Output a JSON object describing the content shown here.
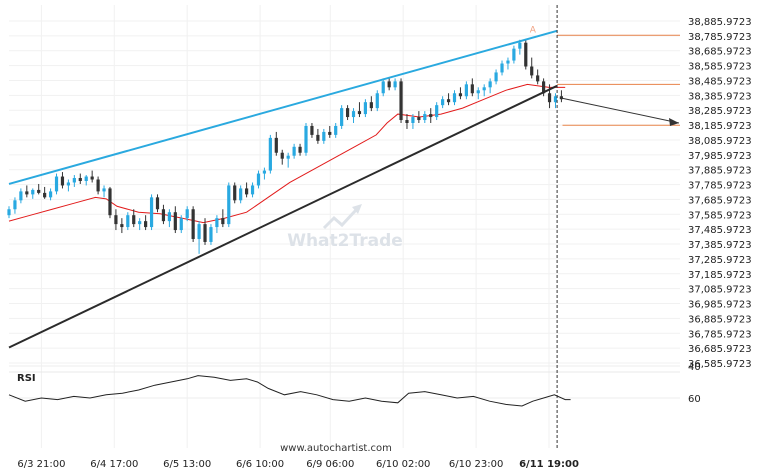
{
  "footer": {
    "source": "www.autochartist.com"
  },
  "watermark": {
    "text": "What2Trade"
  },
  "chart_data": {
    "type": "candlestick",
    "y_ticks": [
      "38,885.9723",
      "38,785.9723",
      "38,685.9723",
      "38,585.9723",
      "38,485.9723",
      "38,385.9723",
      "38,285.9723",
      "38,185.9723",
      "38,085.9723",
      "37,985.9723",
      "37,885.9723",
      "37,785.9723",
      "37,685.9723",
      "37,585.9723",
      "37,485.9723",
      "37,385.9723",
      "37,285.9723",
      "37,185.9723",
      "37,085.9723",
      "36,985.9723",
      "36,885.9723",
      "36,785.9723",
      "36,685.9723",
      "36,585.9723"
    ],
    "ylim": [
      36585.9723,
      38885.9723
    ],
    "x_ticks": [
      "6/3 21:00",
      "6/4 17:00",
      "6/5 13:00",
      "6/6 10:00",
      "6/9 06:00",
      "6/10 02:00",
      "6/10 23:00",
      "6/11 19:00"
    ],
    "x_range": [
      0,
      100
    ],
    "x_tick_positions": [
      6,
      19.5,
      33,
      46.5,
      59.5,
      73,
      86.5,
      100
    ],
    "pattern_label": "A",
    "colors": {
      "up_candle": "#29a9e1",
      "down_candle": "#333333",
      "moving_average": "#e21b1b",
      "upper_trendline": "#2aa9df",
      "lower_trendline": "#2b2b2b",
      "level_lines": "#e8834a",
      "forecast_arrow": "#333333"
    },
    "upper_trendline": [
      [
        0,
        37790
      ],
      [
        101.5,
        38820
      ]
    ],
    "lower_trendline": [
      [
        0,
        36690
      ],
      [
        101.5,
        38450
      ]
    ],
    "level_lines": [
      38790,
      38460,
      38185
    ],
    "forecast_arrow": {
      "from": [
        102,
        38370
      ],
      "to": [
        126,
        38200
      ]
    },
    "current_time_x": 101.5,
    "candles": [
      [
        0,
        37580,
        37640,
        37560,
        37620
      ],
      [
        1.1,
        37620,
        37700,
        37590,
        37680
      ],
      [
        2.2,
        37680,
        37760,
        37660,
        37740
      ],
      [
        3.3,
        37740,
        37780,
        37700,
        37720
      ],
      [
        4.4,
        37720,
        37760,
        37690,
        37750
      ],
      [
        5.5,
        37750,
        37790,
        37720,
        37730
      ],
      [
        6.6,
        37730,
        37770,
        37690,
        37700
      ],
      [
        7.7,
        37700,
        37760,
        37680,
        37740
      ],
      [
        8.8,
        37740,
        37860,
        37720,
        37840
      ],
      [
        9.9,
        37840,
        37870,
        37760,
        37780
      ],
      [
        11,
        37780,
        37820,
        37740,
        37800
      ],
      [
        12.1,
        37800,
        37850,
        37770,
        37830
      ],
      [
        13.2,
        37830,
        37860,
        37790,
        37810
      ],
      [
        14.3,
        37810,
        37850,
        37780,
        37840
      ],
      [
        15.4,
        37840,
        37880,
        37800,
        37820
      ],
      [
        16.5,
        37820,
        37840,
        37720,
        37740
      ],
      [
        17.6,
        37740,
        37780,
        37700,
        37760
      ],
      [
        18.7,
        37760,
        37770,
        37560,
        37580
      ],
      [
        19.8,
        37580,
        37620,
        37480,
        37520
      ],
      [
        20.9,
        37520,
        37560,
        37460,
        37500
      ],
      [
        22,
        37500,
        37600,
        37480,
        37580
      ],
      [
        23.1,
        37580,
        37620,
        37500,
        37520
      ],
      [
        24.2,
        37520,
        37560,
        37480,
        37540
      ],
      [
        25.3,
        37540,
        37580,
        37480,
        37500
      ],
      [
        26.4,
        37500,
        37720,
        37480,
        37700
      ],
      [
        27.5,
        37700,
        37720,
        37600,
        37620
      ],
      [
        28.6,
        37620,
        37650,
        37520,
        37540
      ],
      [
        29.7,
        37540,
        37620,
        37500,
        37600
      ],
      [
        30.8,
        37600,
        37640,
        37460,
        37480
      ],
      [
        31.9,
        37480,
        37580,
        37460,
        37560
      ],
      [
        33,
        37560,
        37640,
        37540,
        37620
      ],
      [
        34.1,
        37620,
        37640,
        37400,
        37420
      ],
      [
        35.2,
        37420,
        37540,
        37320,
        37520
      ],
      [
        36.3,
        37520,
        37560,
        37380,
        37400
      ],
      [
        37.4,
        37400,
        37520,
        37380,
        37500
      ],
      [
        38.5,
        37500,
        37580,
        37460,
        37560
      ],
      [
        39.6,
        37560,
        37620,
        37500,
        37520
      ],
      [
        40.7,
        37520,
        37800,
        37500,
        37780
      ],
      [
        41.8,
        37780,
        37800,
        37660,
        37680
      ],
      [
        42.9,
        37680,
        37780,
        37660,
        37760
      ],
      [
        44,
        37760,
        37800,
        37700,
        37720
      ],
      [
        45.1,
        37720,
        37800,
        37700,
        37780
      ],
      [
        46.2,
        37780,
        37880,
        37760,
        37860
      ],
      [
        47.3,
        37860,
        37900,
        37820,
        37880
      ],
      [
        48.4,
        37880,
        38120,
        37860,
        38100
      ],
      [
        49.5,
        38100,
        38140,
        37980,
        38000
      ],
      [
        50.6,
        38000,
        38020,
        37920,
        37960
      ],
      [
        51.7,
        37960,
        38000,
        37900,
        37980
      ],
      [
        52.8,
        37980,
        38060,
        37960,
        38040
      ],
      [
        53.9,
        38040,
        38060,
        37980,
        38000
      ],
      [
        55,
        38000,
        38200,
        37980,
        38180
      ],
      [
        56.1,
        38180,
        38200,
        38100,
        38120
      ],
      [
        57.2,
        38120,
        38160,
        38060,
        38080
      ],
      [
        58.3,
        38080,
        38160,
        38060,
        38140
      ],
      [
        59.4,
        38140,
        38180,
        38100,
        38120
      ],
      [
        60.5,
        38120,
        38200,
        38100,
        38180
      ],
      [
        61.6,
        38180,
        38320,
        38160,
        38300
      ],
      [
        62.7,
        38300,
        38320,
        38220,
        38240
      ],
      [
        63.8,
        38240,
        38300,
        38200,
        38280
      ],
      [
        64.9,
        38280,
        38340,
        38240,
        38260
      ],
      [
        66,
        38260,
        38360,
        38240,
        38340
      ],
      [
        67.1,
        38340,
        38380,
        38280,
        38300
      ],
      [
        68.2,
        38300,
        38420,
        38280,
        38400
      ],
      [
        69.3,
        38400,
        38500,
        38380,
        38480
      ],
      [
        70.4,
        38480,
        38500,
        38420,
        38440
      ],
      [
        71.5,
        38440,
        38500,
        38420,
        38480
      ],
      [
        72.6,
        38480,
        38500,
        38200,
        38220
      ],
      [
        73.7,
        38220,
        38260,
        38160,
        38200
      ],
      [
        74.8,
        38200,
        38260,
        38160,
        38240
      ],
      [
        75.9,
        38240,
        38280,
        38200,
        38220
      ],
      [
        77,
        38220,
        38280,
        38200,
        38260
      ],
      [
        78.1,
        38260,
        38300,
        38200,
        38240
      ],
      [
        79.2,
        38240,
        38340,
        38220,
        38320
      ],
      [
        80.3,
        38320,
        38380,
        38300,
        38360
      ],
      [
        81.4,
        38360,
        38400,
        38320,
        38340
      ],
      [
        82.5,
        38340,
        38420,
        38320,
        38400
      ],
      [
        83.6,
        38400,
        38440,
        38360,
        38380
      ],
      [
        84.7,
        38380,
        38480,
        38360,
        38460
      ],
      [
        85.8,
        38460,
        38500,
        38380,
        38400
      ],
      [
        86.9,
        38400,
        38440,
        38360,
        38420
      ],
      [
        88,
        38420,
        38460,
        38380,
        38440
      ],
      [
        89.1,
        38440,
        38500,
        38400,
        38480
      ],
      [
        90.2,
        38480,
        38560,
        38460,
        38540
      ],
      [
        91.3,
        38540,
        38620,
        38520,
        38600
      ],
      [
        92.4,
        38600,
        38640,
        38560,
        38620
      ],
      [
        93.5,
        38620,
        38720,
        38600,
        38700
      ],
      [
        94.6,
        38700,
        38760,
        38660,
        38740
      ],
      [
        95.7,
        38740,
        38760,
        38560,
        38580
      ],
      [
        96.8,
        38580,
        38640,
        38500,
        38520
      ],
      [
        97.9,
        38520,
        38560,
        38460,
        38480
      ],
      [
        99,
        38480,
        38500,
        38380,
        38400
      ],
      [
        100.1,
        38400,
        38460,
        38300,
        38340
      ],
      [
        101.2,
        38340,
        38400,
        38300,
        38380
      ],
      [
        102.3,
        38380,
        38420,
        38340,
        38360
      ]
    ],
    "moving_average": [
      [
        0,
        37540
      ],
      [
        4,
        37580
      ],
      [
        8,
        37620
      ],
      [
        12,
        37660
      ],
      [
        16,
        37700
      ],
      [
        18,
        37690
      ],
      [
        20,
        37640
      ],
      [
        24,
        37600
      ],
      [
        28,
        37590
      ],
      [
        32,
        37560
      ],
      [
        36,
        37530
      ],
      [
        40,
        37560
      ],
      [
        44,
        37600
      ],
      [
        48,
        37700
      ],
      [
        52,
        37800
      ],
      [
        56,
        37880
      ],
      [
        60,
        37960
      ],
      [
        64,
        38040
      ],
      [
        68,
        38120
      ],
      [
        70,
        38200
      ],
      [
        72,
        38260
      ],
      [
        76,
        38240
      ],
      [
        80,
        38260
      ],
      [
        84,
        38300
      ],
      [
        88,
        38360
      ],
      [
        92,
        38420
      ],
      [
        96,
        38460
      ],
      [
        100,
        38440
      ],
      [
        103,
        38440
      ]
    ],
    "rsi": {
      "title": "RSI",
      "y_ticks": [
        60,
        40
      ],
      "ylim": [
        25,
        80
      ],
      "values": [
        [
          0,
          58
        ],
        [
          3,
          62
        ],
        [
          6,
          60
        ],
        [
          9,
          61
        ],
        [
          12,
          59
        ],
        [
          15,
          60
        ],
        [
          18,
          58
        ],
        [
          21,
          57
        ],
        [
          24,
          55
        ],
        [
          27,
          52
        ],
        [
          30,
          50
        ],
        [
          33,
          48
        ],
        [
          35,
          46
        ],
        [
          38,
          47
        ],
        [
          41,
          49
        ],
        [
          44,
          48
        ],
        [
          46,
          50
        ],
        [
          48,
          54
        ],
        [
          51,
          58
        ],
        [
          54,
          56
        ],
        [
          57,
          58
        ],
        [
          60,
          61
        ],
        [
          63,
          62
        ],
        [
          66,
          60
        ],
        [
          69,
          62
        ],
        [
          72,
          63
        ],
        [
          74,
          57
        ],
        [
          77,
          56
        ],
        [
          80,
          58
        ],
        [
          83,
          60
        ],
        [
          86,
          59
        ],
        [
          89,
          62
        ],
        [
          92,
          64
        ],
        [
          95,
          65
        ],
        [
          97,
          62
        ],
        [
          99,
          60
        ],
        [
          101,
          58
        ],
        [
          103,
          61
        ],
        [
          104,
          61
        ]
      ]
    }
  }
}
